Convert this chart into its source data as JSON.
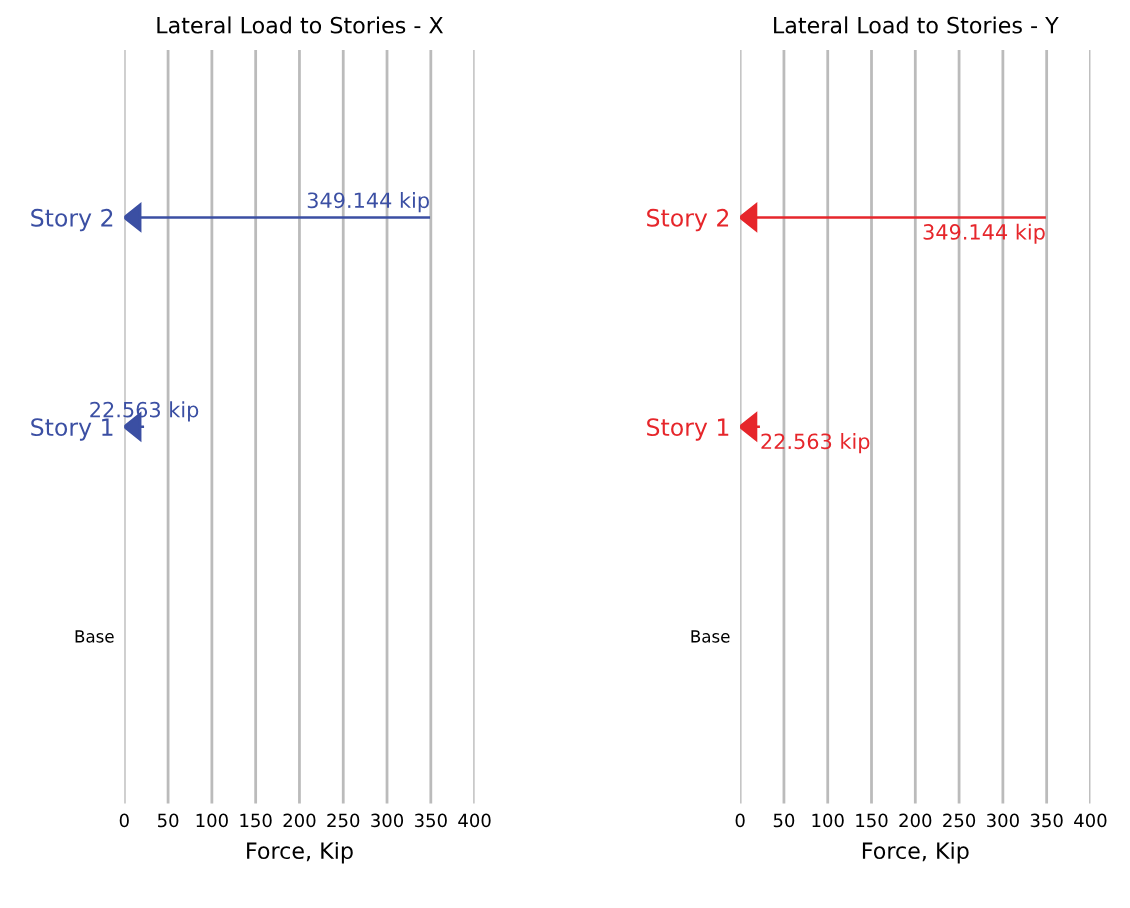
{
  "chart_data": [
    {
      "type": "bar",
      "orientation": "horizontal",
      "title": "Lateral Load to Stories - X",
      "xlabel": "Force, Kip",
      "categories": [
        "Story 2",
        "Story 1",
        "Base"
      ],
      "series": [
        {
          "color": "#3b4fa3",
          "values": [
            349.144,
            22.563,
            null
          ],
          "value_labels": [
            "349.144 kip",
            "22.563 kip",
            null
          ]
        }
      ],
      "xlim": [
        0,
        400
      ],
      "xticks": [
        0,
        50,
        100,
        150,
        200,
        250,
        300,
        350,
        400
      ],
      "grid": "x"
    },
    {
      "type": "bar",
      "orientation": "horizontal",
      "title": "Lateral Load to Stories - Y",
      "xlabel": "Force, Kip",
      "categories": [
        "Story 2",
        "Story 1",
        "Base"
      ],
      "series": [
        {
          "color": "#e6262b",
          "values": [
            349.144,
            22.563,
            null
          ],
          "value_labels": [
            "349.144 kip",
            "22.563 kip",
            null
          ]
        }
      ],
      "xlim": [
        0,
        400
      ],
      "xticks": [
        0,
        50,
        100,
        150,
        200,
        250,
        300,
        350,
        400
      ],
      "grid": "x"
    }
  ]
}
